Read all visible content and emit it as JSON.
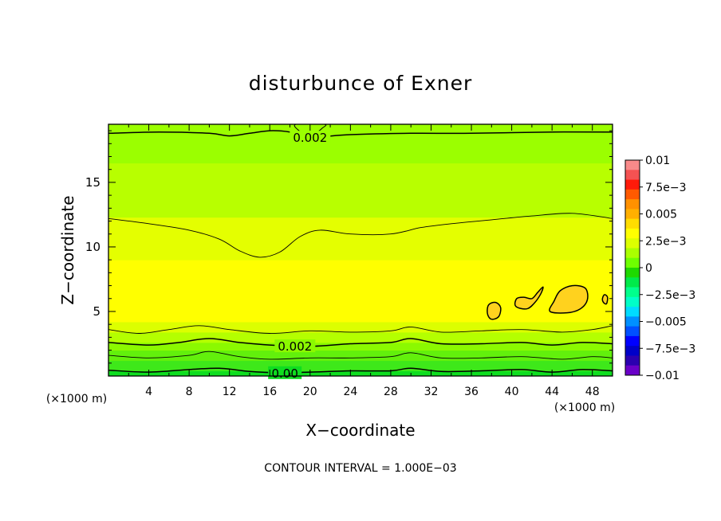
{
  "chart_data": {
    "type": "heatmap",
    "title": "disturbunce of Exner",
    "xlabel": "X−coordinate",
    "ylabel": "Z−coordinate",
    "x_unit_left": "(×1000 m)",
    "x_unit_right": "(×1000 m)",
    "footer": "CONTOUR INTERVAL = 1.000E−03",
    "xlim": [
      0,
      50
    ],
    "ylim": [
      0,
      19.5
    ],
    "x_ticks": [
      {
        "value": 4,
        "label": "4"
      },
      {
        "value": 8,
        "label": "8"
      },
      {
        "value": 12,
        "label": "12"
      },
      {
        "value": 16,
        "label": "16"
      },
      {
        "value": 20,
        "label": "20"
      },
      {
        "value": 24,
        "label": "24"
      },
      {
        "value": 28,
        "label": "28"
      },
      {
        "value": 32,
        "label": "32"
      },
      {
        "value": 36,
        "label": "36"
      },
      {
        "value": 40,
        "label": "40"
      },
      {
        "value": 44,
        "label": "44"
      },
      {
        "value": 48,
        "label": "48"
      }
    ],
    "y_ticks": [
      {
        "value": 5,
        "label": "5"
      },
      {
        "value": 10,
        "label": "10"
      },
      {
        "value": 15,
        "label": "15"
      }
    ],
    "colorbar": {
      "range": [
        -0.01,
        0.01
      ],
      "labels": [
        {
          "value": 0.01,
          "label": "0.01"
        },
        {
          "value": 0.0075,
          "label": "7.5e−3"
        },
        {
          "value": 0.005,
          "label": "0.005"
        },
        {
          "value": 0.0025,
          "label": "2.5e−3"
        },
        {
          "value": 0,
          "label": "0"
        },
        {
          "value": -0.0025,
          "label": "−2.5e−3"
        },
        {
          "value": -0.005,
          "label": "−0.005"
        },
        {
          "value": -0.0075,
          "label": "−7.5e−3"
        },
        {
          "value": -0.01,
          "label": "−0.01"
        }
      ],
      "colors": [
        "#f98a8a",
        "#f45252",
        "#ff1a0a",
        "#ff5a00",
        "#ff9100",
        "#ffb000",
        "#ffdd00",
        "#ffff00",
        "#ddff00",
        "#aaff00",
        "#6eff00",
        "#1ed900",
        "#00ea4a",
        "#00ff8c",
        "#00ffc8",
        "#00dcff",
        "#0090ff",
        "#0050ff",
        "#0000ff",
        "#0000c8",
        "#2b00b0",
        "#6a00c8"
      ]
    },
    "bands": [
      {
        "z": [
          0,
          0.4
        ],
        "value": 0.00055,
        "color": "#0fdd20"
      },
      {
        "z": [
          0.4,
          1.2
        ],
        "value": 0.00125,
        "color": "#3ee81a"
      },
      {
        "z": [
          1.2,
          2.0
        ],
        "value": 0.00175,
        "color": "#62f00c"
      },
      {
        "z": [
          2.0,
          2.6
        ],
        "value": 0.00225,
        "color": "#8bf900"
      },
      {
        "z": [
          2.6,
          3.4
        ],
        "value": 0.00275,
        "color": "#b4ff00"
      },
      {
        "z": [
          3.4,
          4.2
        ],
        "value": 0.0032,
        "color": "#dcff00"
      },
      {
        "z": [
          4.2,
          9.0
        ],
        "value": 0.0036,
        "color": "#ffff00"
      },
      {
        "z": [
          9.0,
          12.3
        ],
        "value": 0.003,
        "color": "#e4ff00"
      },
      {
        "z": [
          12.3,
          16.5
        ],
        "value": 0.0025,
        "color": "#b8ff00"
      },
      {
        "z": [
          16.5,
          19.5
        ],
        "value": 0.0021,
        "color": "#9bff00"
      }
    ],
    "patches": [
      {
        "x": [
          37.5,
          39
        ],
        "z": [
          4.5,
          5.6
        ],
        "value": 0.0042,
        "color": "#ffd21e"
      },
      {
        "x": [
          40.5,
          43
        ],
        "z": [
          5.2,
          6.8
        ],
        "value": 0.0043,
        "color": "#ffd21e"
      },
      {
        "x": [
          43.8,
          47.5
        ],
        "z": [
          4.8,
          7.0
        ],
        "value": 0.0045,
        "color": "#ffd21e"
      },
      {
        "x": [
          49.0,
          49.5
        ],
        "z": [
          5.6,
          6.3
        ],
        "value": 0.0041,
        "color": "#ffd21e"
      }
    ],
    "contours": [
      {
        "level": 0.002,
        "label": "0.002",
        "label_x": 20,
        "points": [
          [
            0,
            18.8
          ],
          [
            5,
            18.9
          ],
          [
            10,
            18.8
          ],
          [
            12,
            18.6
          ],
          [
            14,
            18.8
          ],
          [
            16,
            19.0
          ],
          [
            18,
            18.9
          ],
          [
            20,
            18.5
          ],
          [
            24,
            18.7
          ],
          [
            30,
            18.8
          ],
          [
            36,
            18.8
          ],
          [
            44,
            18.9
          ],
          [
            50,
            18.9
          ]
        ]
      },
      {
        "level": 0.003,
        "label": "",
        "label_x": null,
        "points": [
          [
            0,
            12.2
          ],
          [
            4,
            11.8
          ],
          [
            8,
            11.3
          ],
          [
            11,
            10.6
          ],
          [
            13,
            9.7
          ],
          [
            15,
            9.2
          ],
          [
            17,
            9.6
          ],
          [
            19,
            10.8
          ],
          [
            21,
            11.3
          ],
          [
            24,
            11.0
          ],
          [
            28,
            11.0
          ],
          [
            31,
            11.5
          ],
          [
            34,
            11.8
          ],
          [
            38,
            12.1
          ],
          [
            42,
            12.4
          ],
          [
            46,
            12.6
          ],
          [
            50,
            12.2
          ]
        ]
      },
      {
        "level": 0.003,
        "label": "",
        "label_x": null,
        "points": [
          [
            0,
            3.6
          ],
          [
            3,
            3.3
          ],
          [
            6,
            3.6
          ],
          [
            9,
            3.9
          ],
          [
            12,
            3.6
          ],
          [
            16,
            3.3
          ],
          [
            20,
            3.5
          ],
          [
            24,
            3.4
          ],
          [
            28,
            3.5
          ],
          [
            30,
            3.8
          ],
          [
            33,
            3.4
          ],
          [
            37,
            3.5
          ],
          [
            41,
            3.6
          ],
          [
            45,
            3.4
          ],
          [
            48,
            3.6
          ],
          [
            50,
            3.9
          ]
        ]
      },
      {
        "level": 0.002,
        "label": "0.002",
        "label_x": 18.5,
        "points": [
          [
            0,
            2.6
          ],
          [
            4,
            2.4
          ],
          [
            7,
            2.6
          ],
          [
            10,
            2.9
          ],
          [
            13,
            2.6
          ],
          [
            16,
            2.4
          ],
          [
            20,
            2.3
          ],
          [
            24,
            2.5
          ],
          [
            28,
            2.6
          ],
          [
            30,
            2.9
          ],
          [
            33,
            2.5
          ],
          [
            37,
            2.5
          ],
          [
            41,
            2.6
          ],
          [
            44,
            2.4
          ],
          [
            47,
            2.6
          ],
          [
            50,
            2.5
          ]
        ]
      },
      {
        "level": 0.001,
        "label": "",
        "label_x": null,
        "points": [
          [
            0,
            1.6
          ],
          [
            4,
            1.4
          ],
          [
            8,
            1.6
          ],
          [
            10,
            1.9
          ],
          [
            13,
            1.5
          ],
          [
            16,
            1.3
          ],
          [
            20,
            1.4
          ],
          [
            24,
            1.4
          ],
          [
            28,
            1.5
          ],
          [
            30,
            1.8
          ],
          [
            33,
            1.4
          ],
          [
            37,
            1.4
          ],
          [
            41,
            1.5
          ],
          [
            45,
            1.3
          ],
          [
            48,
            1.5
          ],
          [
            50,
            1.4
          ]
        ]
      },
      {
        "level": 0.0,
        "label": "0.00",
        "label_x": 17.5,
        "points": [
          [
            0,
            0.45
          ],
          [
            4,
            0.3
          ],
          [
            8,
            0.5
          ],
          [
            11,
            0.6
          ],
          [
            14,
            0.35
          ],
          [
            17,
            0.25
          ],
          [
            20,
            0.3
          ],
          [
            24,
            0.4
          ],
          [
            28,
            0.4
          ],
          [
            30,
            0.6
          ],
          [
            33,
            0.35
          ],
          [
            37,
            0.4
          ],
          [
            41,
            0.5
          ],
          [
            44,
            0.3
          ],
          [
            47,
            0.5
          ],
          [
            50,
            0.4
          ]
        ]
      }
    ],
    "closed_contours": [
      {
        "level": 0.004,
        "points": [
          [
            37.6,
            4.8
          ],
          [
            38.0,
            4.4
          ],
          [
            38.7,
            4.6
          ],
          [
            38.9,
            5.3
          ],
          [
            38.4,
            5.7
          ],
          [
            37.7,
            5.5
          ]
        ]
      },
      {
        "level": 0.004,
        "points": [
          [
            40.4,
            5.4
          ],
          [
            41.5,
            5.2
          ],
          [
            42.3,
            5.7
          ],
          [
            42.9,
            6.4
          ],
          [
            43.1,
            6.9
          ],
          [
            42.6,
            6.5
          ],
          [
            42.0,
            6.0
          ],
          [
            41.2,
            6.1
          ],
          [
            40.5,
            6.0
          ]
        ]
      },
      {
        "level": 0.004,
        "points": [
          [
            43.8,
            5.0
          ],
          [
            45.5,
            4.9
          ],
          [
            46.8,
            5.2
          ],
          [
            47.5,
            5.9
          ],
          [
            47.3,
            6.8
          ],
          [
            46.0,
            7.0
          ],
          [
            44.8,
            6.6
          ],
          [
            44.2,
            5.8
          ]
        ]
      },
      {
        "level": 0.004,
        "points": [
          [
            49.1,
            5.7
          ],
          [
            49.4,
            5.6
          ],
          [
            49.5,
            6.1
          ],
          [
            49.2,
            6.3
          ],
          [
            49.0,
            6.0
          ]
        ]
      },
      {
        "level": 0.0015,
        "points": [
          [
            18.6,
            19.5
          ],
          [
            18.9,
            19.0
          ],
          [
            19.6,
            18.7
          ],
          [
            20.5,
            18.8
          ],
          [
            21.2,
            19.2
          ],
          [
            21.4,
            19.5
          ]
        ]
      }
    ]
  }
}
